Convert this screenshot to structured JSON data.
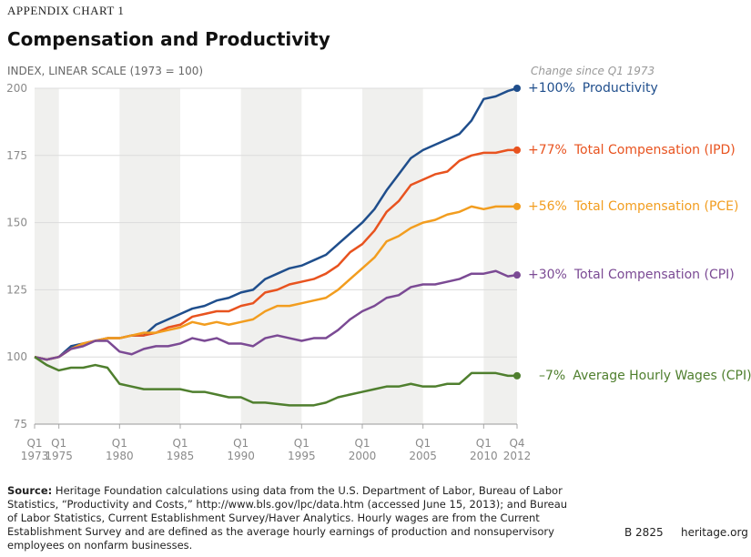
{
  "chart_data": {
    "type": "line",
    "kicker": "APPENDIX CHART 1",
    "title": "Compensation and Productivity",
    "subtitle": "INDEX, LINEAR SCALE (1973 = 100)",
    "annotation": "Change since Q1 1973",
    "x": [
      1973,
      1974,
      1975,
      1976,
      1977,
      1978,
      1979,
      1980,
      1981,
      1982,
      1983,
      1984,
      1985,
      1986,
      1987,
      1988,
      1989,
      1990,
      1991,
      1992,
      1993,
      1994,
      1995,
      1996,
      1997,
      1998,
      1999,
      2000,
      2001,
      2002,
      2003,
      2004,
      2005,
      2006,
      2007,
      2008,
      2009,
      2010,
      2011,
      2012,
      2012.75
    ],
    "xlim": [
      1973,
      2012.75
    ],
    "xticks": [
      {
        "value": 1973,
        "label": "Q1 1973"
      },
      {
        "value": 1975,
        "label": "Q1 1975"
      },
      {
        "value": 1980,
        "label": "Q1 1980"
      },
      {
        "value": 1985,
        "label": "Q1 1985"
      },
      {
        "value": 1990,
        "label": "Q1 1990"
      },
      {
        "value": 1995,
        "label": "Q1 1995"
      },
      {
        "value": 2000,
        "label": "Q1 2000"
      },
      {
        "value": 2005,
        "label": "Q1 2005"
      },
      {
        "value": 2010,
        "label": "Q1 2010"
      },
      {
        "value": 2012.75,
        "label": "Q4 2012"
      }
    ],
    "ylim": [
      75,
      200
    ],
    "yticks": [
      75,
      100,
      125,
      150,
      175,
      200
    ],
    "grid": true,
    "series": [
      {
        "name": "Productivity",
        "change_label": "+100%",
        "color": "#1f4e8c",
        "values": [
          100,
          99,
          100,
          104,
          105,
          106,
          107,
          107,
          108,
          108,
          112,
          114,
          116,
          118,
          119,
          121,
          122,
          124,
          125,
          129,
          131,
          133,
          134,
          136,
          138,
          142,
          146,
          150,
          155,
          162,
          168,
          174,
          177,
          179,
          181,
          183,
          188,
          196,
          197,
          199,
          200
        ]
      },
      {
        "name": "Total Compensation (IPD)",
        "change_label": "+77%",
        "color": "#e8531f",
        "values": [
          100,
          99,
          100,
          103,
          105,
          106,
          107,
          107,
          108,
          108,
          109,
          111,
          112,
          115,
          116,
          117,
          117,
          119,
          120,
          124,
          125,
          127,
          128,
          129,
          131,
          134,
          139,
          142,
          147,
          154,
          158,
          164,
          166,
          168,
          169,
          173,
          175,
          176,
          176,
          177,
          177
        ]
      },
      {
        "name": "Total Compensation (PCE)",
        "change_label": "+56%",
        "color": "#f29d1f",
        "values": [
          100,
          99,
          100,
          103,
          105,
          106,
          107,
          107,
          108,
          109,
          109,
          110,
          111,
          113,
          112,
          113,
          112,
          113,
          114,
          117,
          119,
          119,
          120,
          121,
          122,
          125,
          129,
          133,
          137,
          143,
          145,
          148,
          150,
          151,
          153,
          154,
          156,
          155,
          156,
          156,
          156
        ]
      },
      {
        "name": "Total Compensation (CPI)",
        "change_label": "+30%",
        "color": "#7b4a94",
        "values": [
          100,
          99,
          100,
          103,
          104,
          106,
          106,
          102,
          101,
          103,
          104,
          104,
          105,
          107,
          106,
          107,
          105,
          105,
          104,
          107,
          108,
          107,
          106,
          107,
          107,
          110,
          114,
          117,
          119,
          122,
          123,
          126,
          127,
          127,
          128,
          129,
          131,
          131,
          132,
          130,
          130.5
        ]
      },
      {
        "name": "Average Hourly Wages (CPI)",
        "change_label": "–7%",
        "color": "#4f7f2e",
        "values": [
          100,
          97,
          95,
          96,
          96,
          97,
          96,
          90,
          89,
          88,
          88,
          88,
          88,
          87,
          87,
          86,
          85,
          85,
          83,
          83,
          82.5,
          82,
          82,
          82,
          83,
          85,
          86,
          87,
          88,
          89,
          89,
          90,
          89,
          89,
          90,
          90,
          94,
          94,
          94,
          93,
          93
        ]
      }
    ],
    "source_label": "Source:",
    "source_text": "Heritage Foundation calculations using data from the U.S. Department of Labor, Bureau of Labor Statistics, “Productivity and Costs,” http://www.bls.gov/lpc/data.htm (accessed June 15, 2013); and Bureau of Labor Statistics, Current Establishment Survey/Haver Analytics. Hourly wages are from the Current Establishment Survey and are defined as the average hourly earnings of production and nonsupervisory employees on nonfarm businesses.",
    "report_id": "B 2825",
    "site": "heritage.org"
  }
}
